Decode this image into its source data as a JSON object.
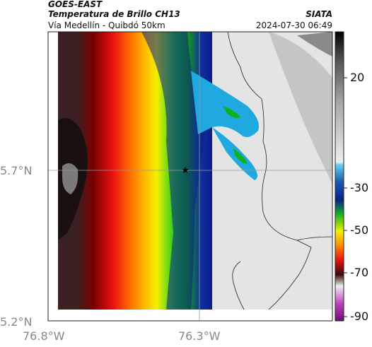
{
  "header": {
    "satellite": "GOES-EAST",
    "product": "Temperatura de Brillo CH13",
    "organization": "SIATA",
    "region": "Vía Medellín - Quibdó 50km",
    "datetime": "2024-07-30 06:49"
  },
  "map": {
    "lat_ticks": [
      "5.7°N",
      "5.2°N"
    ],
    "lon_ticks": [
      "76.8°W",
      "76.3°W"
    ],
    "marker_icon": "star-icon",
    "colors": {
      "warm_gray": "#e2e2e2",
      "cold_black": "#1a1010",
      "dark_red": "#8b0000",
      "red": "#e81010",
      "orange": "#ff8a00",
      "yellow": "#f4f000",
      "green": "#10c010",
      "dark_blue": "#0b1f8a",
      "cyan": "#20a8e0",
      "light_cyan": "#70d8f8",
      "magenta": "#b030b0"
    }
  },
  "colorbar": {
    "tick_labels": [
      "20",
      "-30",
      "-50",
      "-70",
      "-90"
    ]
  }
}
